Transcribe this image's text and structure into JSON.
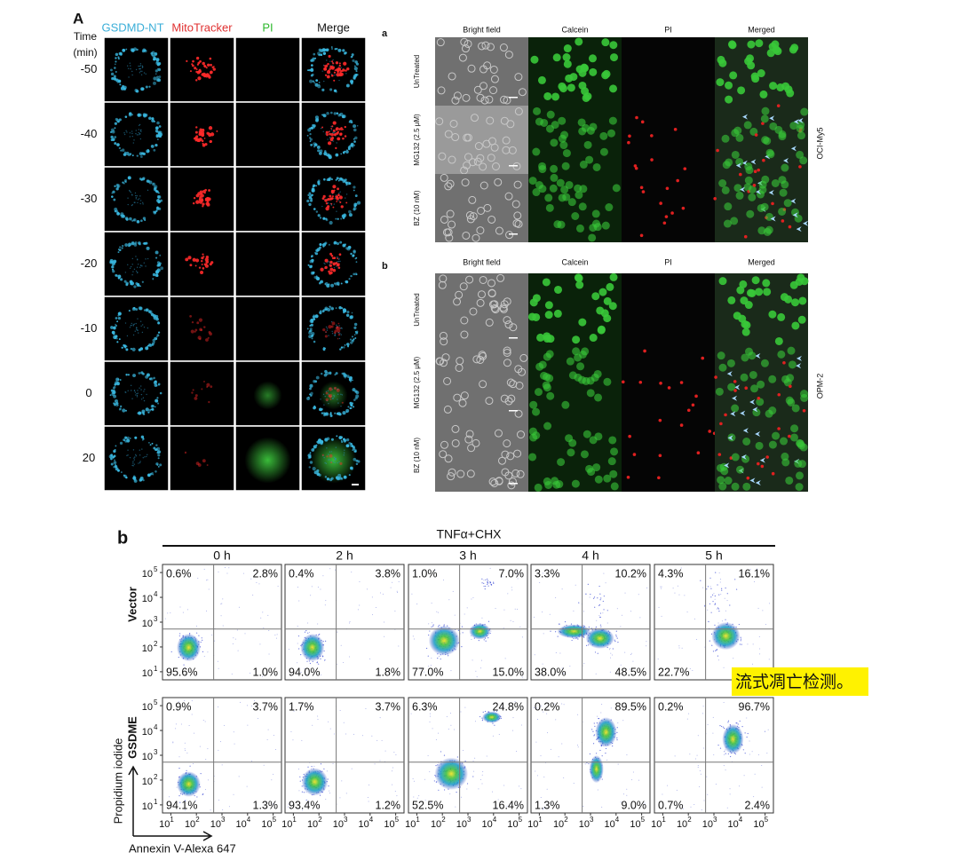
{
  "panel_A": {
    "label": "A",
    "time_label": [
      "Time",
      "(min)"
    ],
    "columns": [
      "GSDMD-NT",
      "MitoTracker",
      "PI",
      "Merge"
    ],
    "rows": [
      "-50",
      "-40",
      "-30",
      "-20",
      "-10",
      "0",
      "20"
    ]
  },
  "panel_right": [
    {
      "label": "a",
      "columns": [
        "Bright field",
        "Calcein",
        "PI",
        "Merged"
      ],
      "rows": [
        "UnTreated",
        "MG132  (2.5 μM)",
        "BZ (10 nM)"
      ],
      "cell_line": "OCI-My5"
    },
    {
      "label": "b",
      "columns": [
        "Bright field",
        "Calcein",
        "PI",
        "Merged"
      ],
      "rows": [
        "UnTreated",
        "MG132  (2.5 μM)",
        "BZ (10 nM)"
      ],
      "cell_line": "OPM-2"
    }
  ],
  "panel_b": {
    "label": "b",
    "treatment": "TNFα+CHX",
    "timepoints": [
      "0 h",
      "2 h",
      "3 h",
      "4 h",
      "5 h"
    ],
    "rows": [
      {
        "name": "Vector",
        "plots": [
          {
            "ul": "0.6%",
            "ur": "2.8%",
            "ll": "95.6%",
            "lr": "1.0%"
          },
          {
            "ul": "0.4%",
            "ur": "3.8%",
            "ll": "94.0%",
            "lr": "1.8%"
          },
          {
            "ul": "1.0%",
            "ur": "7.0%",
            "ll": "77.0%",
            "lr": "15.0%"
          },
          {
            "ul": "3.3%",
            "ur": "10.2%",
            "ll": "38.0%",
            "lr": "48.5%"
          },
          {
            "ul": "4.3%",
            "ur": "16.1%",
            "ll": "22.7%"
          }
        ]
      },
      {
        "name": "GSDME",
        "plots": [
          {
            "ul": "0.9%",
            "ur": "3.7%",
            "ll": "94.1%",
            "lr": "1.3%"
          },
          {
            "ul": "1.7%",
            "ur": "3.7%",
            "ll": "93.4%",
            "lr": "1.2%"
          },
          {
            "ul": "6.3%",
            "ur": "24.8%",
            "ll": "52.5%",
            "lr": "16.4%"
          },
          {
            "ul": "0.2%",
            "ur": "89.5%",
            "ll": "1.3%",
            "lr": "9.0%"
          },
          {
            "ul": "0.2%",
            "ur": "96.7%",
            "ll": "0.7%",
            "lr": "2.4%"
          }
        ]
      }
    ],
    "axis_ticks": [
      {
        "base": "10",
        "exp": "1"
      },
      {
        "base": "10",
        "exp": "2"
      },
      {
        "base": "10",
        "exp": "3"
      },
      {
        "base": "10",
        "exp": "4"
      },
      {
        "base": "10",
        "exp": "5"
      }
    ],
    "y_axis_label": "Propidium iodide",
    "x_axis_label": "Annexin V-Alexa 647"
  },
  "annotation": "流式凋亡检测。"
}
